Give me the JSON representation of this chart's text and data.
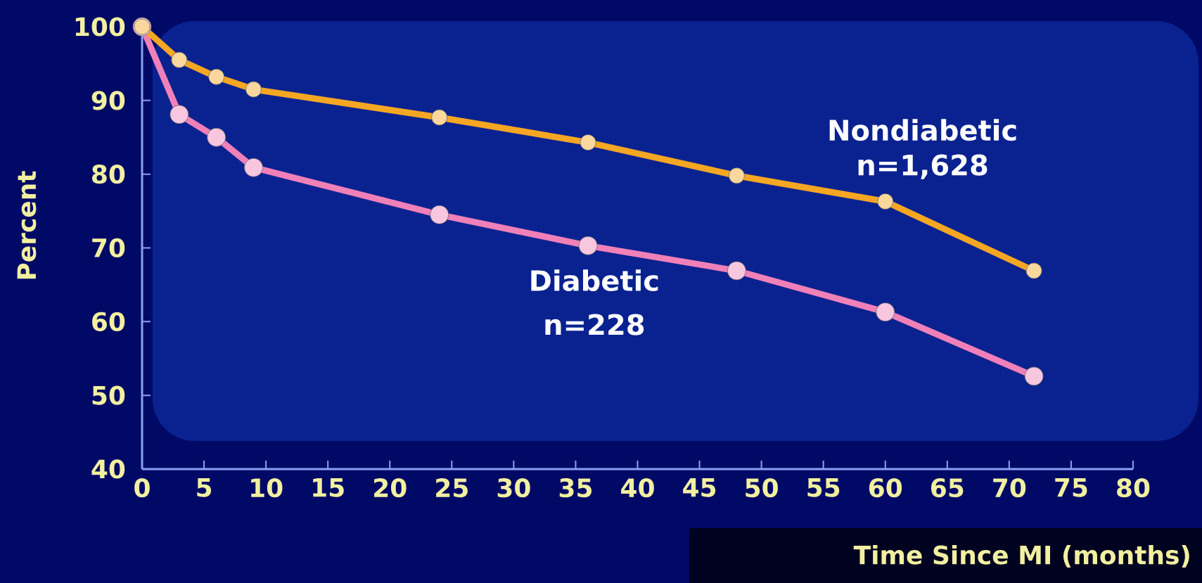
{
  "chart_data": {
    "type": "line",
    "xlabel": "Time Since MI (months)",
    "ylabel": "Percent",
    "xlim": [
      0,
      80
    ],
    "ylim": [
      40,
      100
    ],
    "xticks": [
      0,
      5,
      10,
      15,
      20,
      25,
      30,
      35,
      40,
      45,
      50,
      55,
      60,
      65,
      70,
      75,
      80
    ],
    "yticks": [
      40,
      50,
      60,
      70,
      80,
      90,
      100
    ],
    "marker": "circle",
    "line_style": "solid",
    "grid": false,
    "series": [
      {
        "name": "Nondiabetic",
        "color": "#f5a623",
        "x": [
          0,
          3,
          6,
          9,
          24,
          36,
          48,
          60,
          72
        ],
        "values": [
          100,
          95.5,
          93.2,
          91.5,
          87.7,
          84.3,
          79.8,
          76.3,
          66.9
        ]
      },
      {
        "name": "Diabetic",
        "color": "#f080b8",
        "x": [
          0,
          3,
          6,
          9,
          24,
          36,
          48,
          60,
          72
        ],
        "values": [
          100,
          88.1,
          85,
          80.9,
          74.5,
          70.3,
          66.9,
          61.3,
          52.6
        ]
      }
    ],
    "annotations": [
      "n=1,628",
      "n=228"
    ]
  }
}
